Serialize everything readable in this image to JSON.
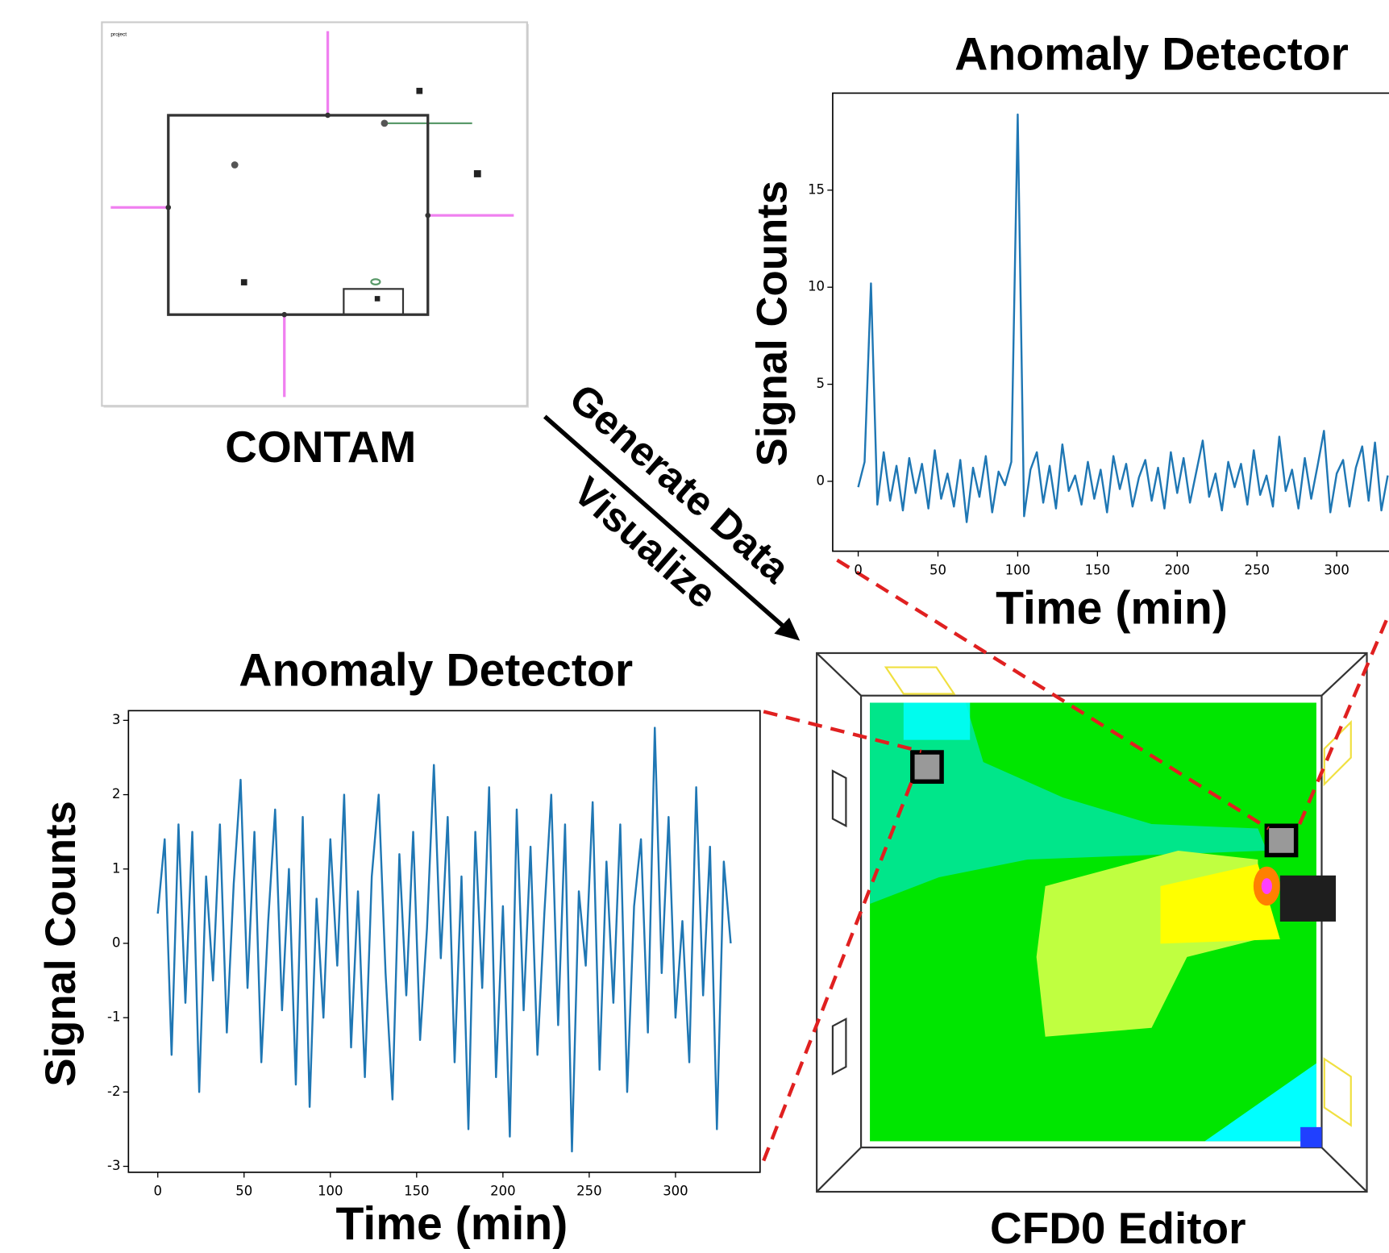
{
  "chart_data": [
    {
      "type": "line",
      "title": "Anomaly Detector",
      "xlabel": "Time (min)",
      "ylabel": "Signal Counts",
      "x": [
        0,
        4,
        8,
        12,
        16,
        20,
        24,
        28,
        32,
        36,
        40,
        44,
        48,
        52,
        56,
        60,
        64,
        68,
        72,
        76,
        80,
        84,
        88,
        92,
        96,
        100,
        104,
        108,
        112,
        116,
        120,
        124,
        128,
        132,
        136,
        140,
        144,
        148,
        152,
        156,
        160,
        164,
        168,
        172,
        176,
        180,
        184,
        188,
        192,
        196,
        200,
        204,
        208,
        212,
        216,
        220,
        224,
        228,
        232,
        236,
        240,
        244,
        248,
        252,
        256,
        260,
        264,
        268,
        272,
        276,
        280,
        284,
        288,
        292,
        296,
        300,
        304,
        308,
        312,
        316,
        320,
        324,
        328,
        332
      ],
      "values": [
        -0.3,
        1.0,
        10.2,
        -1.2,
        1.5,
        -1.0,
        0.8,
        -1.5,
        1.2,
        -0.6,
        0.9,
        -1.4,
        1.6,
        -0.9,
        0.4,
        -1.3,
        1.1,
        -2.1,
        0.7,
        -0.8,
        1.3,
        -1.6,
        0.5,
        -0.2,
        1.0,
        18.9,
        -1.8,
        0.6,
        1.5,
        -1.1,
        0.8,
        -1.4,
        1.9,
        -0.5,
        0.3,
        -1.2,
        1.0,
        -0.9,
        0.6,
        -1.6,
        1.3,
        -0.4,
        0.9,
        -1.3,
        0.2,
        1.1,
        -1.0,
        0.7,
        -1.4,
        1.5,
        -0.6,
        1.2,
        -1.1,
        0.5,
        2.1,
        -0.8,
        0.4,
        -1.5,
        1.0,
        -0.3,
        0.9,
        -1.2,
        1.6,
        -0.7,
        0.3,
        -1.3,
        2.3,
        -0.5,
        0.6,
        -1.4,
        1.2,
        -0.9,
        0.8,
        2.6,
        -1.6,
        0.4,
        1.1,
        -1.3,
        0.7,
        1.8,
        -1.0,
        2.0,
        -1.5,
        0.3
      ],
      "color": "#1f77b4",
      "xlim": [
        -16,
        350
      ],
      "ylim": [
        -3.6,
        20.0
      ],
      "xticks": [
        0,
        50,
        100,
        150,
        200,
        250,
        300
      ],
      "yticks": [
        0,
        5,
        10,
        15
      ]
    },
    {
      "type": "line",
      "title": "Anomaly Detector",
      "xlabel": "Time (min)",
      "ylabel": "Signal Counts",
      "x": [
        0,
        4,
        8,
        12,
        16,
        20,
        24,
        28,
        32,
        36,
        40,
        44,
        48,
        52,
        56,
        60,
        64,
        68,
        72,
        76,
        80,
        84,
        88,
        92,
        96,
        100,
        104,
        108,
        112,
        116,
        120,
        124,
        128,
        132,
        136,
        140,
        144,
        148,
        152,
        156,
        160,
        164,
        168,
        172,
        176,
        180,
        184,
        188,
        192,
        196,
        200,
        204,
        208,
        212,
        216,
        220,
        224,
        228,
        232,
        236,
        240,
        244,
        248,
        252,
        256,
        260,
        264,
        268,
        272,
        276,
        280,
        284,
        288,
        292,
        296,
        300,
        304,
        308,
        312,
        316,
        320,
        324,
        328,
        332
      ],
      "values": [
        0.4,
        1.4,
        -1.5,
        1.6,
        -0.8,
        1.5,
        -2.0,
        0.9,
        -0.5,
        1.6,
        -1.2,
        0.8,
        2.2,
        -0.6,
        1.5,
        -1.6,
        0.3,
        1.8,
        -0.9,
        1.0,
        -1.9,
        1.7,
        -2.2,
        0.6,
        -1.0,
        1.4,
        -0.3,
        2.0,
        -1.4,
        0.7,
        -1.8,
        0.9,
        2.0,
        -0.4,
        -2.1,
        1.2,
        -0.7,
        1.5,
        -1.3,
        0.2,
        2.4,
        -0.2,
        1.7,
        -1.6,
        0.9,
        -2.5,
        1.5,
        -0.6,
        2.1,
        -1.8,
        0.5,
        -2.6,
        1.8,
        -0.9,
        1.3,
        -1.5,
        0.4,
        2.0,
        -1.1,
        1.6,
        -2.8,
        0.7,
        -0.3,
        1.9,
        -1.7,
        1.1,
        -0.8,
        1.6,
        -2.0,
        0.5,
        1.4,
        -1.2,
        2.9,
        -0.4,
        1.7,
        -1.0,
        0.3,
        -1.6,
        2.1,
        -0.7,
        1.3,
        -2.5,
        1.1,
        0.0
      ],
      "color": "#1f77b4",
      "xlim": [
        -17,
        349
      ],
      "ylim": [
        -3.08,
        3.13
      ],
      "xticks": [
        0,
        50,
        100,
        150,
        200,
        250,
        300
      ],
      "yticks": [
        -3,
        -2,
        -1,
        0,
        1,
        2,
        3
      ]
    }
  ],
  "figure": {
    "contam_label": "CONTAM",
    "cfd_label": "CFD0 Editor",
    "arrow_top": "Generate Data",
    "arrow_bottom": "Visualize"
  }
}
